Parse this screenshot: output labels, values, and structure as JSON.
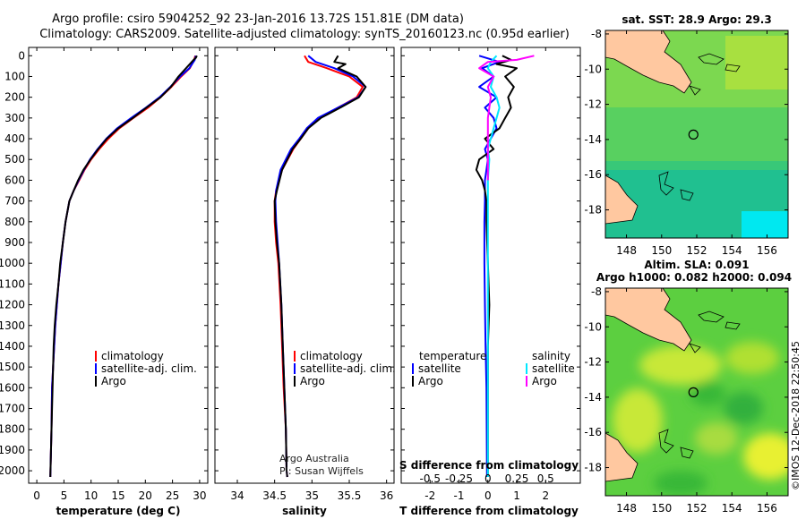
{
  "title": {
    "line1": "Argo profile: csiro 5904252_92 23-Jan-2016 13.72S 151.81E (DM data)",
    "line2": "Climatology: CARS2009. Satellite-adjusted climatology: synTS_20160123.nc (0.95d earlier)"
  },
  "colors": {
    "climatology": "#ff0000",
    "satellite": "#0000ff",
    "argo": "#000000",
    "sat_salinity": "#00e8ff",
    "argo_salinity": "#ff00ff",
    "land": "#ffc8a0"
  },
  "depth_axis": {
    "ticks": [
      0,
      100,
      200,
      300,
      400,
      500,
      600,
      700,
      800,
      900,
      1000,
      1100,
      1200,
      1300,
      1400,
      1500,
      1600,
      1700,
      1800,
      1900,
      2000
    ],
    "ylim": [
      2060,
      -40
    ]
  },
  "chart_data": [
    {
      "id": "temperature",
      "type": "line",
      "xlabel": "temperature (deg C)",
      "xlim": [
        -1.5,
        31.5
      ],
      "xticks": [
        0,
        5,
        10,
        15,
        20,
        25,
        30
      ],
      "ylim": [
        2060,
        -40
      ],
      "legend": [
        "climatology",
        "satellite-adj. clim.",
        "Argo"
      ],
      "series": [
        {
          "name": "climatology",
          "color": "#ff0000",
          "x": [
            29.2,
            29.0,
            28.2,
            26.6,
            24.8,
            22.8,
            20.5,
            17.8,
            15.2,
            13.2,
            11.5,
            10.0,
            8.8,
            7.8,
            6.8,
            6.0,
            5.3,
            4.8,
            4.4,
            4.0,
            3.7,
            3.4,
            3.2,
            3.0,
            2.8,
            2.7,
            2.5
          ],
          "y": [
            0,
            20,
            60,
            100,
            150,
            200,
            250,
            300,
            350,
            400,
            450,
            500,
            550,
            600,
            650,
            700,
            800,
            900,
            1000,
            1100,
            1200,
            1300,
            1400,
            1500,
            1600,
            1800,
            2030
          ]
        },
        {
          "name": "satellite-adj. clim.",
          "color": "#0000ff",
          "x": [
            29.3,
            29.1,
            28.1,
            26.4,
            24.6,
            22.6,
            20.1,
            17.4,
            14.8,
            12.8,
            11.2,
            9.8,
            8.7,
            7.7,
            6.8,
            6.0,
            5.3,
            4.8,
            4.4,
            4.0,
            3.7,
            3.4,
            3.2,
            3.0,
            2.8,
            2.7,
            2.5
          ],
          "y": [
            0,
            20,
            60,
            100,
            150,
            200,
            250,
            300,
            350,
            400,
            450,
            500,
            550,
            600,
            650,
            700,
            800,
            900,
            1000,
            1100,
            1200,
            1300,
            1400,
            1500,
            1600,
            1800,
            2030
          ]
        },
        {
          "name": "Argo",
          "color": "#000000",
          "x": [
            29.5,
            29.3,
            28.9,
            27.5,
            26.1,
            24.7,
            22.8,
            20.2,
            17.7,
            15.0,
            12.9,
            11.3,
            9.9,
            8.6,
            7.6,
            6.8,
            6.0,
            5.3,
            4.8,
            4.3,
            4.0,
            3.6,
            3.3,
            3.1,
            2.9,
            2.7,
            2.5
          ],
          "y": [
            0,
            10,
            20,
            60,
            100,
            150,
            200,
            250,
            300,
            350,
            400,
            450,
            500,
            550,
            600,
            650,
            700,
            800,
            900,
            1000,
            1100,
            1200,
            1300,
            1400,
            1600,
            1800,
            2030
          ]
        }
      ]
    },
    {
      "id": "salinity",
      "type": "line",
      "xlabel": "salinity",
      "xlim": [
        33.7,
        36.1
      ],
      "xticks": [
        34,
        34.5,
        35,
        35.5,
        36
      ],
      "ylim": [
        2060,
        -40
      ],
      "legend": [
        "climatology",
        "satellite-adj. clim.",
        "Argo"
      ],
      "series": [
        {
          "name": "climatology",
          "color": "#ff0000",
          "x": [
            34.9,
            34.95,
            35.2,
            35.5,
            35.68,
            35.6,
            35.35,
            35.1,
            34.95,
            34.85,
            34.75,
            34.6,
            34.52,
            34.5,
            34.5,
            34.52,
            34.55,
            34.58,
            34.6,
            34.62,
            34.65,
            34.66,
            34.67
          ],
          "y": [
            0,
            30,
            60,
            100,
            150,
            200,
            250,
            300,
            350,
            400,
            450,
            550,
            650,
            700,
            800,
            900,
            1000,
            1200,
            1400,
            1600,
            1800,
            2000,
            2030
          ]
        },
        {
          "name": "satellite-adj. clim.",
          "color": "#0000ff",
          "x": [
            34.95,
            35.05,
            35.3,
            35.55,
            35.72,
            35.62,
            35.35,
            35.08,
            34.93,
            34.83,
            34.72,
            34.58,
            34.52,
            34.51,
            34.52,
            34.54,
            34.56,
            34.59,
            34.61,
            34.63,
            34.65,
            34.66,
            34.67
          ],
          "y": [
            0,
            30,
            60,
            100,
            150,
            200,
            250,
            300,
            350,
            400,
            450,
            550,
            650,
            700,
            800,
            900,
            1000,
            1200,
            1400,
            1600,
            1800,
            2000,
            2030
          ]
        },
        {
          "name": "Argo",
          "color": "#000000",
          "x": [
            35.35,
            35.3,
            35.45,
            35.35,
            35.6,
            35.72,
            35.63,
            35.38,
            35.12,
            34.95,
            34.85,
            34.74,
            34.6,
            34.53,
            34.5,
            34.51,
            34.53,
            34.56,
            34.59,
            34.61,
            34.63,
            34.65,
            34.66,
            34.67
          ],
          "y": [
            0,
            30,
            40,
            60,
            100,
            150,
            200,
            250,
            300,
            350,
            400,
            450,
            550,
            650,
            700,
            800,
            900,
            1000,
            1200,
            1400,
            1600,
            1800,
            2000,
            2030
          ]
        }
      ]
    },
    {
      "id": "difference",
      "type": "line",
      "xlabel": "T difference from climatology",
      "xlabel2": "S difference from climatology",
      "xlim": [
        -3,
        3.2
      ],
      "xticks": [
        -2,
        -1,
        0,
        1,
        2
      ],
      "sticks": [
        "-0.5",
        "-0.25",
        "0",
        "0.25",
        "0.5"
      ],
      "sticks_x": [
        -2,
        -1,
        0,
        1,
        2
      ],
      "ylim": [
        2060,
        -40
      ],
      "legend_t_title": "temperature",
      "legend_s_title": "salinity",
      "legend_t": [
        "satellite",
        "Argo"
      ],
      "legend_s": [
        "satellite",
        "Argo"
      ],
      "series": [
        {
          "name": "T satellite",
          "color": "#0000ff",
          "x": [
            -0.3,
            0.4,
            -0.2,
            0.2,
            -0.3,
            0.3,
            -0.1,
            0.2,
            0.3,
            0.1,
            -0.1,
            0.0,
            -0.05,
            -0.1,
            -0.1,
            -0.1,
            -0.12,
            -0.12,
            -0.1,
            -0.08,
            -0.05,
            -0.04,
            -0.03
          ],
          "y": [
            0,
            30,
            60,
            100,
            150,
            200,
            250,
            300,
            350,
            400,
            450,
            500,
            550,
            600,
            650,
            700,
            800,
            1000,
            1200,
            1400,
            1600,
            1800,
            2030
          ]
        },
        {
          "name": "T Argo",
          "color": "#000000",
          "x": [
            0.5,
            0.8,
            0.3,
            1.0,
            0.6,
            0.9,
            0.7,
            0.8,
            0.6,
            0.4,
            -0.1,
            0.2,
            -0.3,
            -0.4,
            -0.2,
            -0.1,
            -0.05,
            -0.05,
            0.0,
            0.05,
            0.0,
            0.0,
            0.0,
            0.0
          ],
          "y": [
            0,
            20,
            40,
            60,
            100,
            150,
            200,
            250,
            300,
            350,
            400,
            450,
            500,
            550,
            600,
            650,
            700,
            800,
            1000,
            1200,
            1400,
            1600,
            1800,
            2030
          ]
        },
        {
          "name": "S satellite",
          "color": "#00e8ff",
          "x": [
            0.3,
            0.1,
            0.0,
            0.2,
            0.1,
            0.3,
            0.4,
            0.3,
            0.2,
            0.1,
            0.0,
            0.05,
            0.0,
            0.0,
            0.0,
            0.0,
            0.0
          ],
          "y": [
            0,
            30,
            60,
            100,
            150,
            200,
            250,
            300,
            350,
            400,
            450,
            500,
            600,
            800,
            1200,
            1600,
            2030
          ]
        },
        {
          "name": "S Argo",
          "color": "#ff00ff",
          "x": [
            1.6,
            1.0,
            0.0,
            -0.3,
            0.2,
            0.0,
            0.1,
            0.0,
            0.0,
            0.0
          ],
          "y": [
            0,
            20,
            30,
            60,
            100,
            150,
            200,
            300,
            400,
            600
          ]
        }
      ]
    },
    {
      "id": "sst_map",
      "type": "heatmap",
      "title": "sat. SST: 28.9 Argo: 29.3",
      "xticks": [
        148,
        150,
        152,
        154,
        156
      ],
      "yticks": [
        -8,
        -10,
        -12,
        -14,
        -16,
        -18
      ],
      "xlim": [
        146.8,
        157.2
      ],
      "ylim": [
        -19.6,
        -7.8
      ],
      "marker": {
        "lon": 151.81,
        "lat": -13.72
      }
    },
    {
      "id": "sla_map",
      "type": "heatmap",
      "title": "Altim. SLA: 0.091",
      "subtitle": "Argo h1000: 0.082 h2000: 0.094",
      "xticks": [
        148,
        150,
        152,
        154,
        156
      ],
      "yticks": [
        -8,
        -10,
        -12,
        -14,
        -16,
        -18
      ],
      "xlim": [
        146.8,
        157.2
      ],
      "ylim": [
        -19.6,
        -7.8
      ],
      "marker": {
        "lon": 151.81,
        "lat": -13.72
      }
    }
  ],
  "annotations": {
    "credit1": "Argo Australia",
    "credit2": "PI: Susan Wijffels",
    "watermark": "©IMOS 12-Dec-2018 22:50:45"
  }
}
